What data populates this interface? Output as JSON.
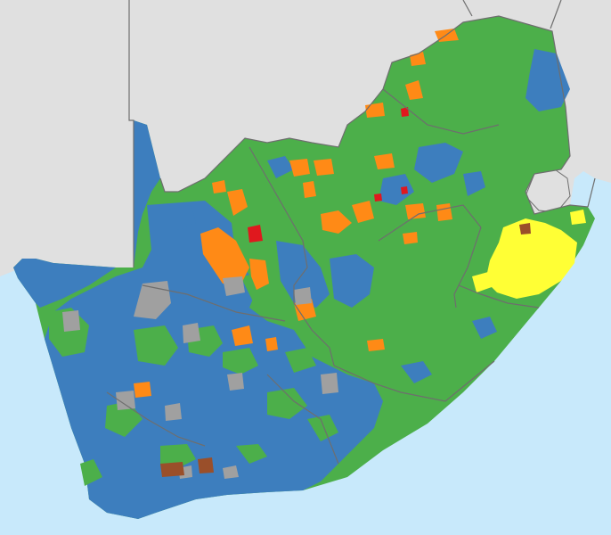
{
  "map": {
    "colors": {
      "ocean": "#c8e9fb",
      "land_outside": "#e0e0e0",
      "borders": "#6e6e6e",
      "green": "#4caf4a",
      "blue": "#3d7ebe",
      "orange": "#ff8a16",
      "gray": "#a0a0a0",
      "yellow": "#ffff35",
      "red": "#e0181e",
      "brown": "#9a4f2a"
    },
    "regions": [
      "namibia",
      "botswana",
      "zimbabwe",
      "mozambique",
      "eswatini",
      "lesotho",
      "south-africa"
    ]
  }
}
